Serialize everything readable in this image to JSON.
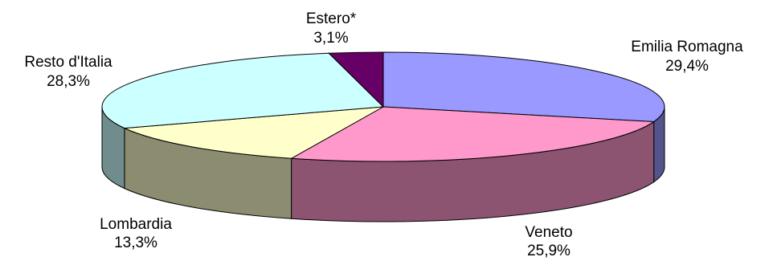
{
  "chart_data": {
    "type": "pie",
    "title": "",
    "slices": [
      {
        "label": "Emilia Romagna",
        "value": 29.4,
        "value_label": "29,4%",
        "color": "#9999ff"
      },
      {
        "label": "Veneto",
        "value": 25.9,
        "value_label": "25,9%",
        "color": "#ff99cc"
      },
      {
        "label": "Lombardia",
        "value": 13.3,
        "value_label": "13,3%",
        "color": "#ffffcc"
      },
      {
        "label": "Resto d'Italia",
        "value": 28.3,
        "value_label": "28,3%",
        "color": "#ccffff"
      },
      {
        "label": "Estero*",
        "value": 3.1,
        "value_label": "3,1%",
        "color": "#660066"
      }
    ],
    "style": "3d-exploded-off",
    "legend": "none"
  }
}
